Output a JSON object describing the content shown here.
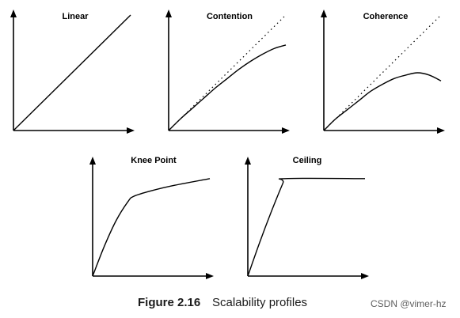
{
  "caption": {
    "label": "Figure 2.16",
    "text": "Scalability profiles"
  },
  "watermark": "CSDN @vimer-hz",
  "chart_data": [
    {
      "type": "line",
      "title": "Linear",
      "xlim": [
        0,
        1
      ],
      "ylim": [
        0,
        1
      ],
      "series": [
        {
          "role": "curve",
          "points": [
            [
              0,
              0
            ],
            [
              1,
              1
            ]
          ]
        }
      ]
    },
    {
      "type": "line",
      "title": "Contention",
      "xlim": [
        0,
        1
      ],
      "ylim": [
        0,
        1
      ],
      "series": [
        {
          "role": "reference",
          "style": "dotted",
          "points": [
            [
              0,
              0
            ],
            [
              1,
              1
            ]
          ]
        },
        {
          "role": "curve",
          "points": [
            [
              0,
              0
            ],
            [
              0.1,
              0.1
            ],
            [
              0.2,
              0.19
            ],
            [
              0.3,
              0.28
            ],
            [
              0.4,
              0.37
            ],
            [
              0.5,
              0.45
            ],
            [
              0.6,
              0.53
            ],
            [
              0.7,
              0.6
            ],
            [
              0.8,
              0.66
            ],
            [
              0.9,
              0.71
            ],
            [
              1,
              0.74
            ]
          ]
        }
      ]
    },
    {
      "type": "line",
      "title": "Coherence",
      "xlim": [
        0,
        1
      ],
      "ylim": [
        0,
        1
      ],
      "series": [
        {
          "role": "reference",
          "style": "dotted",
          "points": [
            [
              0,
              0
            ],
            [
              1,
              1
            ]
          ]
        },
        {
          "role": "curve",
          "points": [
            [
              0,
              0
            ],
            [
              0.1,
              0.1
            ],
            [
              0.2,
              0.18
            ],
            [
              0.3,
              0.26
            ],
            [
              0.4,
              0.34
            ],
            [
              0.5,
              0.4
            ],
            [
              0.6,
              0.45
            ],
            [
              0.7,
              0.48
            ],
            [
              0.8,
              0.5
            ],
            [
              0.9,
              0.48
            ],
            [
              1,
              0.43
            ]
          ]
        }
      ]
    },
    {
      "type": "line",
      "title": "Knee Point",
      "xlim": [
        0,
        1
      ],
      "ylim": [
        0,
        1
      ],
      "series": [
        {
          "role": "curve",
          "points": [
            [
              0,
              0
            ],
            [
              0.1,
              0.27
            ],
            [
              0.2,
              0.5
            ],
            [
              0.3,
              0.67
            ],
            [
              0.35,
              0.72
            ],
            [
              0.5,
              0.77
            ],
            [
              0.7,
              0.82
            ],
            [
              1,
              0.88
            ]
          ]
        }
      ]
    },
    {
      "type": "line",
      "title": "Ceiling",
      "xlim": [
        0,
        1
      ],
      "ylim": [
        0,
        1
      ],
      "series": [
        {
          "role": "curve",
          "points": [
            [
              0,
              0
            ],
            [
              0.1,
              0.3
            ],
            [
              0.2,
              0.58
            ],
            [
              0.3,
              0.84
            ],
            [
              0.32,
              0.88
            ],
            [
              1,
              0.88
            ]
          ]
        }
      ]
    }
  ]
}
